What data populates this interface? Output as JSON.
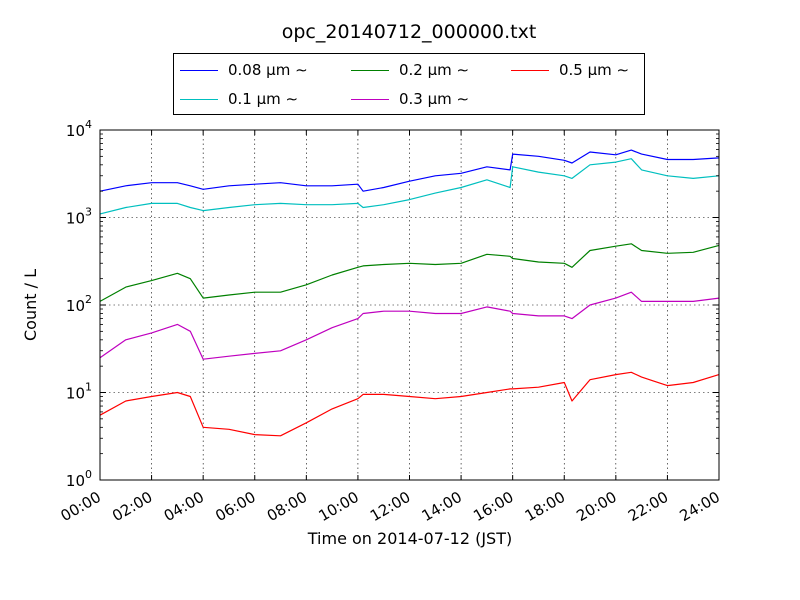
{
  "chart_data": {
    "type": "line",
    "title": "opc_20140712_000000.txt",
    "xlabel": "Time on 2014-07-12 (JST)",
    "ylabel": "Count / L",
    "y_scale": "log",
    "ylim": [
      1,
      10000
    ],
    "xlim_hours": [
      0,
      24
    ],
    "x_tick_labels": [
      "00:00",
      "02:00",
      "04:00",
      "06:00",
      "08:00",
      "10:00",
      "12:00",
      "14:00",
      "16:00",
      "18:00",
      "20:00",
      "22:00",
      "24:00"
    ],
    "y_tick_labels": [
      {
        "base": "10",
        "exp": "0"
      },
      {
        "base": "10",
        "exp": "1"
      },
      {
        "base": "10",
        "exp": "2"
      },
      {
        "base": "10",
        "exp": "3"
      },
      {
        "base": "10",
        "exp": "4"
      }
    ],
    "grid": true,
    "legend_position": "top-center",
    "x_hours": [
      0,
      1,
      2,
      3,
      3.5,
      4,
      5,
      6,
      7,
      8,
      9,
      10,
      10.2,
      11,
      12,
      13,
      14,
      15,
      15.9,
      16,
      17,
      18,
      18.3,
      19,
      20,
      20.6,
      21,
      22,
      23,
      24
    ],
    "series": [
      {
        "name": "0.08 μm ∼",
        "color": "#0000ff",
        "values": [
          2000,
          2300,
          2500,
          2500,
          2300,
          2100,
          2300,
          2400,
          2500,
          2300,
          2300,
          2400,
          2000,
          2200,
          2600,
          3000,
          3200,
          3800,
          3500,
          5300,
          5000,
          4500,
          4200,
          5600,
          5200,
          5900,
          5300,
          4600,
          4600,
          4800
        ]
      },
      {
        "name": "0.1 μm ∼",
        "color": "#00bfbf",
        "values": [
          1100,
          1300,
          1450,
          1450,
          1300,
          1200,
          1300,
          1400,
          1450,
          1400,
          1400,
          1450,
          1300,
          1400,
          1600,
          1900,
          2200,
          2700,
          2200,
          3800,
          3300,
          3000,
          2800,
          4000,
          4300,
          4700,
          3500,
          3000,
          2800,
          3000
        ]
      },
      {
        "name": "0.2 μm ∼",
        "color": "#008000",
        "values": [
          110,
          160,
          190,
          230,
          200,
          120,
          130,
          140,
          140,
          170,
          220,
          270,
          280,
          290,
          300,
          290,
          300,
          380,
          360,
          340,
          310,
          300,
          270,
          420,
          470,
          500,
          420,
          390,
          400,
          480
        ]
      },
      {
        "name": "0.3 μm ∼",
        "color": "#bf00bf",
        "values": [
          25,
          40,
          48,
          60,
          50,
          24,
          26,
          28,
          30,
          40,
          55,
          70,
          80,
          85,
          85,
          80,
          80,
          95,
          85,
          80,
          75,
          75,
          70,
          100,
          120,
          140,
          110,
          110,
          110,
          120
        ]
      },
      {
        "name": "0.5 μm ∼",
        "color": "#ff0000",
        "values": [
          5.5,
          8,
          9,
          10,
          9,
          4,
          3.8,
          3.3,
          3.2,
          4.5,
          6.5,
          8.5,
          9.5,
          9.5,
          9,
          8.5,
          9,
          10,
          11,
          11,
          11.5,
          13,
          8,
          14,
          16,
          17,
          15,
          12,
          13,
          16
        ]
      }
    ]
  }
}
